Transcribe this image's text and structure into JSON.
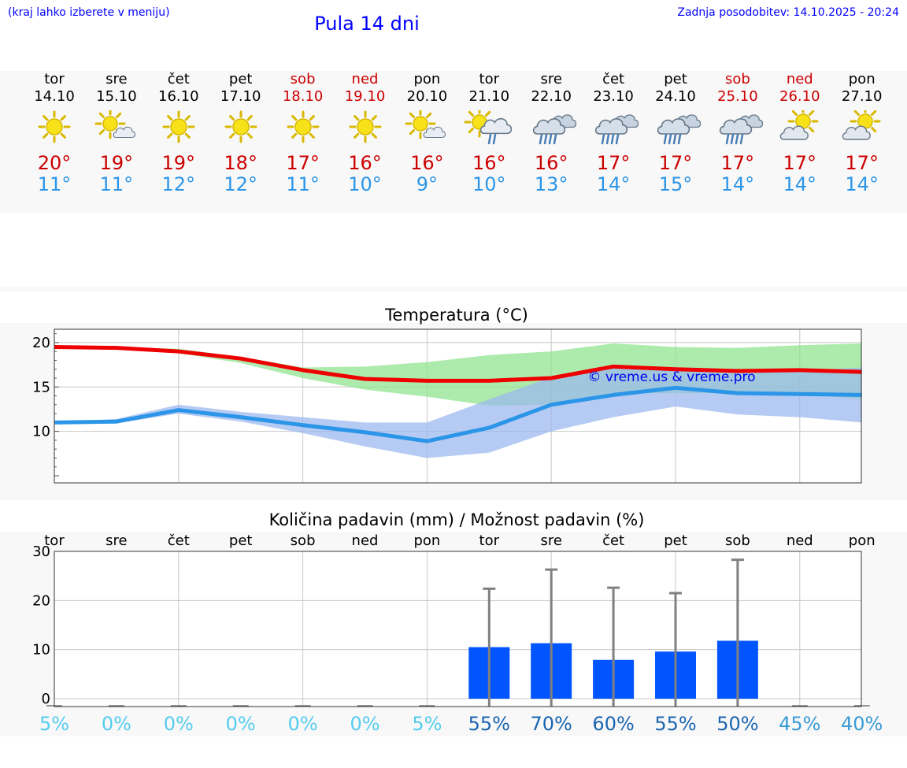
{
  "header": {
    "menu_hint": "(kraj lahko izberete v meniju)",
    "title": "Pula 14 dni",
    "last_update": "Zadnja posodobitev: 14.10.2025 - 20:24"
  },
  "colors": {
    "link_blue": "#0000ff",
    "weekend_red": "#cc0000",
    "max_red": "#ee0000",
    "min_blue": "#2b95e8",
    "bar_blue": "#0055ff"
  },
  "days": [
    {
      "name": "tor",
      "date": "14.10",
      "icon": "sun-icon",
      "tmax": "20°",
      "tmin": "11°",
      "weekend": false
    },
    {
      "name": "sre",
      "date": "15.10",
      "icon": "sun-cloud-icon",
      "tmax": "19°",
      "tmin": "11°",
      "weekend": false
    },
    {
      "name": "čet",
      "date": "16.10",
      "icon": "sun-icon",
      "tmax": "19°",
      "tmin": "12°",
      "weekend": false
    },
    {
      "name": "pet",
      "date": "17.10",
      "icon": "sun-icon",
      "tmax": "18°",
      "tmin": "12°",
      "weekend": false
    },
    {
      "name": "sob",
      "date": "18.10",
      "icon": "sun-icon",
      "tmax": "17°",
      "tmin": "11°",
      "weekend": true
    },
    {
      "name": "ned",
      "date": "19.10",
      "icon": "sun-icon",
      "tmax": "16°",
      "tmin": "10°",
      "weekend": true
    },
    {
      "name": "pon",
      "date": "20.10",
      "icon": "sun-cloud-icon",
      "tmax": "16°",
      "tmin": "9°",
      "weekend": false
    },
    {
      "name": "tor",
      "date": "21.10",
      "icon": "sun-rain-icon",
      "tmax": "16°",
      "tmin": "10°",
      "weekend": false
    },
    {
      "name": "sre",
      "date": "22.10",
      "icon": "rain-cloud-icon",
      "tmax": "16°",
      "tmin": "13°",
      "weekend": false
    },
    {
      "name": "čet",
      "date": "23.10",
      "icon": "rain-cloud-icon",
      "tmax": "17°",
      "tmin": "14°",
      "weekend": false
    },
    {
      "name": "pet",
      "date": "24.10",
      "icon": "rain-cloud-icon",
      "tmax": "17°",
      "tmin": "15°",
      "weekend": false
    },
    {
      "name": "sob",
      "date": "25.10",
      "icon": "rain-cloud-icon",
      "tmax": "17°",
      "tmin": "14°",
      "weekend": true
    },
    {
      "name": "ned",
      "date": "26.10",
      "icon": "cloud-sun-icon",
      "tmax": "17°",
      "tmin": "14°",
      "weekend": true
    },
    {
      "name": "pon",
      "date": "27.10",
      "icon": "cloud-sun-icon",
      "tmax": "17°",
      "tmin": "14°",
      "weekend": false
    }
  ],
  "chart_data": [
    {
      "type": "line",
      "title": "Temperatura (°C)",
      "watermark": "© vreme.us & vreme.pro",
      "x": [
        "14.10",
        "15.10",
        "16.10",
        "17.10",
        "18.10",
        "19.10",
        "20.10",
        "21.10",
        "22.10",
        "23.10",
        "24.10",
        "25.10",
        "26.10",
        "27.10"
      ],
      "ylim": [
        4.2,
        21.5
      ],
      "yticks": [
        10,
        15,
        20
      ],
      "grid": true,
      "series": [
        {
          "name": "max",
          "color": "#ee0000",
          "values": [
            19.5,
            19.4,
            19.0,
            18.2,
            16.9,
            15.9,
            15.7,
            15.7,
            16.0,
            17.3,
            17.0,
            16.8,
            16.9,
            16.7
          ]
        },
        {
          "name": "max_range",
          "color": "#8ee38e",
          "low": [
            19.5,
            19.2,
            18.8,
            17.7,
            16.0,
            14.7,
            13.9,
            12.9,
            13.0,
            14.3,
            14.3,
            14.3,
            14.2,
            13.6
          ],
          "high": [
            19.5,
            19.5,
            19.3,
            18.4,
            17.2,
            17.3,
            17.8,
            18.6,
            19.0,
            19.9,
            19.5,
            19.4,
            19.7,
            19.9
          ]
        },
        {
          "name": "min",
          "color": "#2b95e8",
          "values": [
            11.0,
            11.1,
            12.4,
            11.6,
            10.7,
            9.9,
            8.9,
            10.4,
            13.0,
            14.1,
            14.9,
            14.3,
            14.2,
            14.1
          ]
        },
        {
          "name": "min_range",
          "color": "#9ab7ee",
          "low": [
            11.0,
            10.9,
            12.0,
            11.1,
            9.8,
            8.3,
            7.0,
            7.6,
            10.0,
            11.6,
            12.8,
            11.9,
            11.6,
            11.0
          ],
          "high": [
            11.0,
            11.4,
            13.0,
            12.2,
            11.6,
            11.0,
            11.0,
            13.6,
            16.1,
            17.1,
            17.1,
            16.7,
            16.8,
            17.2
          ]
        }
      ]
    },
    {
      "type": "bar",
      "title": "Količina padavin (mm) / Možnost padavin (%)",
      "categories": [
        "tor",
        "sre",
        "čet",
        "pet",
        "sob",
        "ned",
        "pon",
        "tor",
        "sre",
        "čet",
        "pet",
        "sob",
        "ned",
        "pon"
      ],
      "values": [
        0,
        0,
        0,
        0,
        0,
        0,
        0,
        10.5,
        11.3,
        7.9,
        9.6,
        11.8,
        0,
        0
      ],
      "error_high": [
        0,
        0,
        0,
        0,
        0,
        0,
        0,
        22.4,
        26.3,
        22.6,
        21.5,
        28.3,
        0,
        0
      ],
      "probability": [
        "5%",
        "0%",
        "0%",
        "0%",
        "0%",
        "0%",
        "5%",
        "55%",
        "70%",
        "60%",
        "55%",
        "50%",
        "45%",
        "40%"
      ],
      "ylim": [
        -1.6,
        30
      ],
      "yticks": [
        0,
        10,
        20,
        30
      ],
      "grid": true
    }
  ]
}
